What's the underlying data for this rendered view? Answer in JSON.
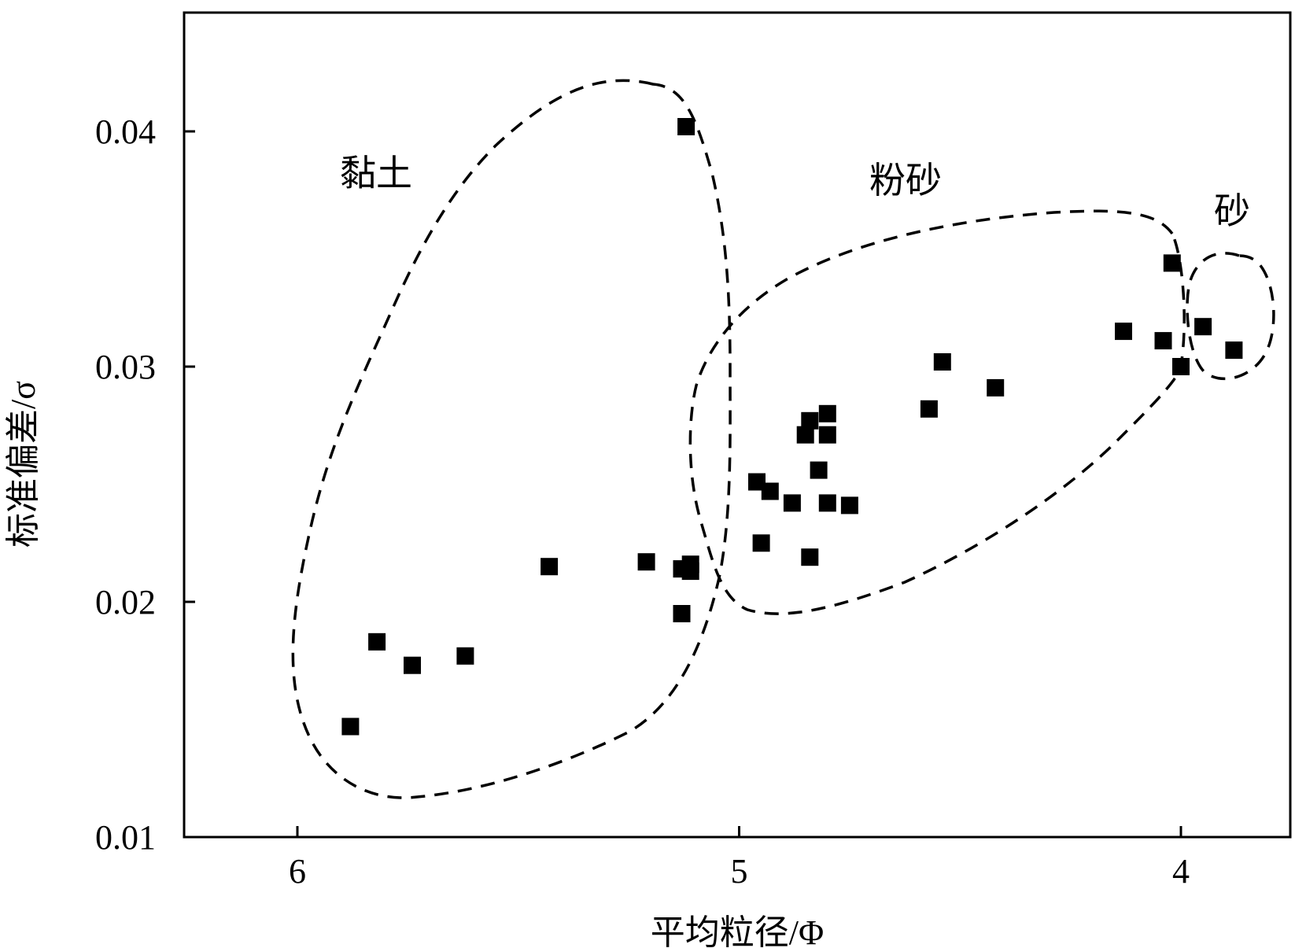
{
  "chart_data": {
    "type": "scatter",
    "xlabel": "平均粒径/Φ",
    "ylabel": "标准偏差/σ",
    "x_reversed": true,
    "xlim": [
      6.25,
      3.75
    ],
    "ylim": [
      0.01,
      0.045
    ],
    "xticks": [
      6,
      5,
      4
    ],
    "xtick_labels": [
      "6",
      "5",
      "4"
    ],
    "yticks": [
      0.01,
      0.02,
      0.03,
      0.04
    ],
    "ytick_labels": [
      "0.01",
      "0.02",
      "0.03",
      "0.04"
    ],
    "grid": false,
    "marker": "square",
    "marker_color": "#000000",
    "region_style": "dashed ellipse",
    "regions": [
      {
        "label": "黏土"
      },
      {
        "label": "粉砂"
      },
      {
        "label": "砂"
      }
    ],
    "points": [
      {
        "x": 5.12,
        "y": 0.0402
      },
      {
        "x": 5.88,
        "y": 0.0147
      },
      {
        "x": 5.82,
        "y": 0.0183
      },
      {
        "x": 5.74,
        "y": 0.0173
      },
      {
        "x": 5.62,
        "y": 0.0177
      },
      {
        "x": 5.43,
        "y": 0.0215
      },
      {
        "x": 5.21,
        "y": 0.0217
      },
      {
        "x": 5.13,
        "y": 0.0214
      },
      {
        "x": 5.11,
        "y": 0.0216
      },
      {
        "x": 5.11,
        "y": 0.0213
      },
      {
        "x": 5.13,
        "y": 0.0195
      },
      {
        "x": 4.96,
        "y": 0.0251
      },
      {
        "x": 4.93,
        "y": 0.0247
      },
      {
        "x": 4.95,
        "y": 0.0225
      },
      {
        "x": 4.88,
        "y": 0.0242
      },
      {
        "x": 4.85,
        "y": 0.0271
      },
      {
        "x": 4.84,
        "y": 0.0277
      },
      {
        "x": 4.82,
        "y": 0.0256
      },
      {
        "x": 4.8,
        "y": 0.0271
      },
      {
        "x": 4.8,
        "y": 0.028
      },
      {
        "x": 4.8,
        "y": 0.0242
      },
      {
        "x": 4.84,
        "y": 0.0219
      },
      {
        "x": 4.75,
        "y": 0.0241
      },
      {
        "x": 4.57,
        "y": 0.0282
      },
      {
        "x": 4.54,
        "y": 0.0302
      },
      {
        "x": 4.42,
        "y": 0.0291
      },
      {
        "x": 4.13,
        "y": 0.0315
      },
      {
        "x": 4.04,
        "y": 0.0311
      },
      {
        "x": 4.02,
        "y": 0.0344
      },
      {
        "x": 4.0,
        "y": 0.03
      },
      {
        "x": 3.95,
        "y": 0.0317
      },
      {
        "x": 3.88,
        "y": 0.0307
      }
    ]
  }
}
